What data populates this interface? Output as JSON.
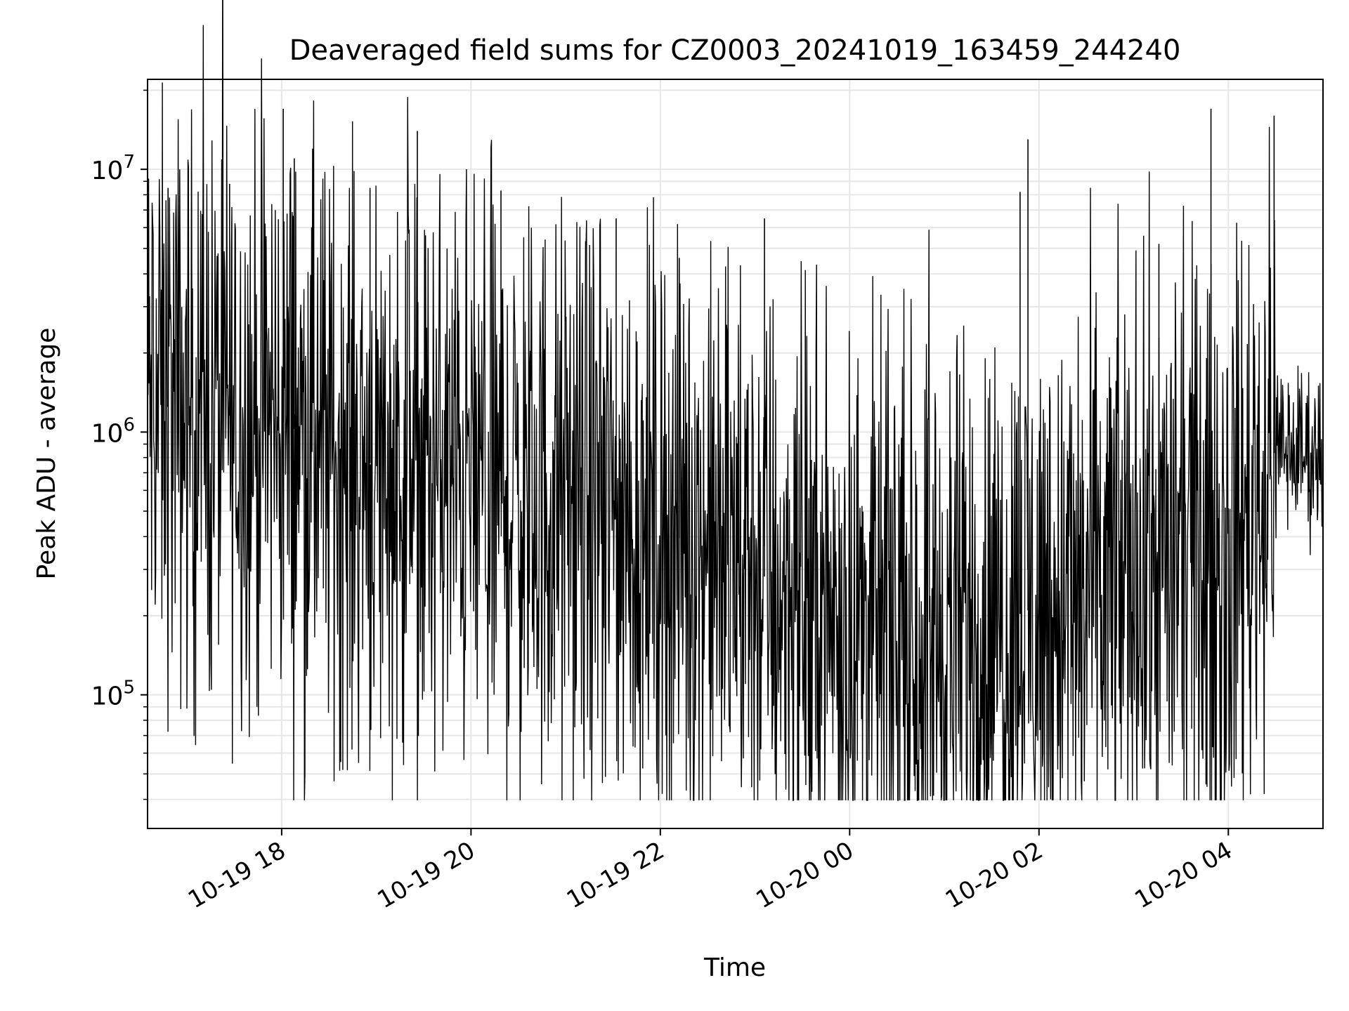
{
  "chart_data": {
    "type": "line",
    "title": "Deaveraged field sums for CZ0003_20241019_163459_244240",
    "xlabel": "Time",
    "ylabel": "Peak ADU - average",
    "yscale": "log",
    "ylim": [
      31000,
      22000000
    ],
    "xlim": [
      "2024-10-19T16:35:00",
      "2024-10-20T05:00:00"
    ],
    "x_ticks": [
      {
        "value": "2024-10-19T18:00",
        "label": "10-19 18"
      },
      {
        "value": "2024-10-19T20:00",
        "label": "10-19 20"
      },
      {
        "value": "2024-10-19T22:00",
        "label": "10-19 22"
      },
      {
        "value": "2024-10-20T00:00",
        "label": "10-20 00"
      },
      {
        "value": "2024-10-20T02:00",
        "label": "10-20 02"
      },
      {
        "value": "2024-10-20T04:00",
        "label": "10-20 04"
      }
    ],
    "y_ticks": [
      {
        "value": 100000,
        "base": "10",
        "exp": "5"
      },
      {
        "value": 1000000,
        "base": "10",
        "exp": "6"
      },
      {
        "value": 10000000,
        "base": "10",
        "exp": "7"
      }
    ],
    "grid": true,
    "line_color": "#000000",
    "grid_color": "#e6e6e6",
    "series": [
      {
        "x": [
          "2024-10-19T16:35",
          "2024-10-19T17:00",
          "2024-10-19T17:30",
          "2024-10-19T18:00",
          "2024-10-19T18:30",
          "2024-10-19T19:00",
          "2024-10-19T19:30",
          "2024-10-19T20:00",
          "2024-10-19T20:30",
          "2024-10-19T21:00",
          "2024-10-19T21:30",
          "2024-10-19T22:00",
          "2024-10-19T22:30",
          "2024-10-19T23:00",
          "2024-10-19T23:30",
          "2024-10-20T00:00",
          "2024-10-20T00:30",
          "2024-10-20T01:00",
          "2024-10-20T01:30",
          "2024-10-20T02:00",
          "2024-10-20T02:30",
          "2024-10-20T03:00",
          "2024-10-20T03:30",
          "2024-10-20T04:00",
          "2024-10-20T04:20",
          "2024-10-20T04:30",
          "2024-10-20T05:00"
        ],
        "values": [
          1300000,
          1200000,
          1150000,
          1100000,
          850000,
          750000,
          700000,
          650000,
          560000,
          520000,
          470000,
          420000,
          360000,
          300000,
          220000,
          190000,
          175000,
          165000,
          180000,
          220000,
          230000,
          300000,
          330000,
          360000,
          620000,
          860000,
          820000
        ],
        "spikes": [
          {
            "x": "2024-10-19T16:48",
            "y": 8500000
          },
          {
            "x": "2024-10-19T17:27",
            "y": 8800000
          },
          {
            "x": "2024-10-19T18:01",
            "y": 17000000
          },
          {
            "x": "2024-10-19T18:08",
            "y": 11000000
          },
          {
            "x": "2024-10-19T18:56",
            "y": 8500000
          },
          {
            "x": "2024-10-19T19:26",
            "y": 14000000
          },
          {
            "x": "2024-10-19T20:19",
            "y": 8300000
          },
          {
            "x": "2024-10-19T21:32",
            "y": 6500000
          },
          {
            "x": "2024-10-19T22:12",
            "y": 4600000
          },
          {
            "x": "2024-10-19T23:06",
            "y": 6500000
          },
          {
            "x": "2024-10-20T01:48",
            "y": 8200000
          },
          {
            "x": "2024-10-20T01:53",
            "y": 13000000
          },
          {
            "x": "2024-10-20T03:16",
            "y": 5200000
          },
          {
            "x": "2024-10-20T03:49",
            "y": 17000000
          },
          {
            "x": "2024-10-20T04:29",
            "y": 16000000
          }
        ]
      }
    ]
  }
}
